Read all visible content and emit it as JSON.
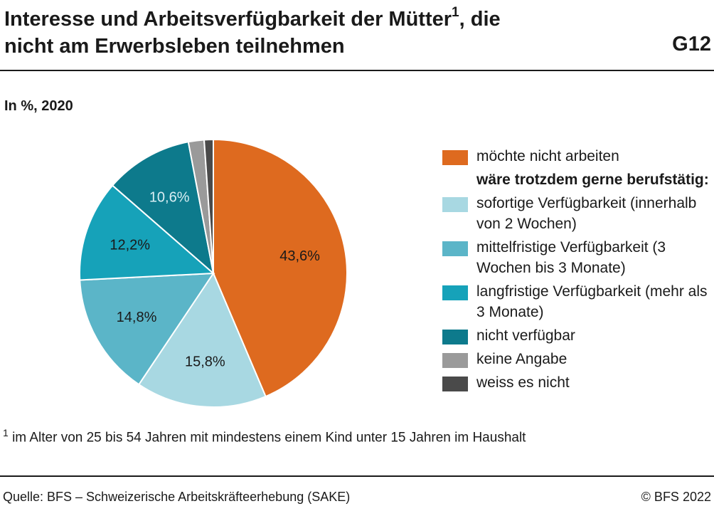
{
  "header": {
    "title_line1": "Interesse und Arbeitsverfügbarkeit der Mütter",
    "title_sup": "1",
    "title_line1_end": ", die",
    "title_line2": "nicht am Erwerbsleben teilnehmen",
    "code": "G12"
  },
  "subtitle": "In %, 2020",
  "legend": {
    "group_heading": "wäre trotzdem gerne berufstätig:"
  },
  "chart_data": {
    "type": "pie",
    "slices": [
      {
        "label": "möchte nicht arbeiten",
        "value": 43.6,
        "value_label": "43,6%",
        "color": "#de6a1f",
        "show_label": true,
        "label_color": "#1a1a1a"
      },
      {
        "label": "sofortige Verfügbarkeit (innerhalb von 2 Wochen)",
        "value": 15.8,
        "value_label": "15,8%",
        "color": "#a8d8e2",
        "show_label": true,
        "label_color": "#1a1a1a"
      },
      {
        "label": "mittelfristige Verfügbarkeit (3 Wochen bis 3 Monate)",
        "value": 14.8,
        "value_label": "14,8%",
        "color": "#5bb5c8",
        "show_label": true,
        "label_color": "#1a1a1a"
      },
      {
        "label": "langfristige Verfügbarkeit (mehr als 3 Monate)",
        "value": 12.2,
        "value_label": "12,2%",
        "color": "#16a2b9",
        "show_label": true,
        "label_color": "#1a1a1a"
      },
      {
        "label": "nicht verfügbar",
        "value": 10.6,
        "value_label": "10,6%",
        "color": "#0d7a8c",
        "show_label": true,
        "label_color": "#d9eef3"
      },
      {
        "label": "keine Angabe",
        "value": 1.9,
        "value_label": "",
        "color": "#9a9a9a",
        "show_label": false,
        "label_color": "#1a1a1a"
      },
      {
        "label": "weiss es nicht",
        "value": 1.1,
        "value_label": "",
        "color": "#4a4a4a",
        "show_label": false,
        "label_color": "#1a1a1a"
      }
    ]
  },
  "footnote": {
    "marker": "1",
    "text": " im Alter von 25 bis 54 Jahren mit mindestens einem Kind unter 15 Jahren im Haushalt"
  },
  "footer": {
    "source": "Quelle: BFS – Schweizerische Arbeitskräfteerhebung (SAKE)",
    "copyright": "© BFS 2022"
  }
}
